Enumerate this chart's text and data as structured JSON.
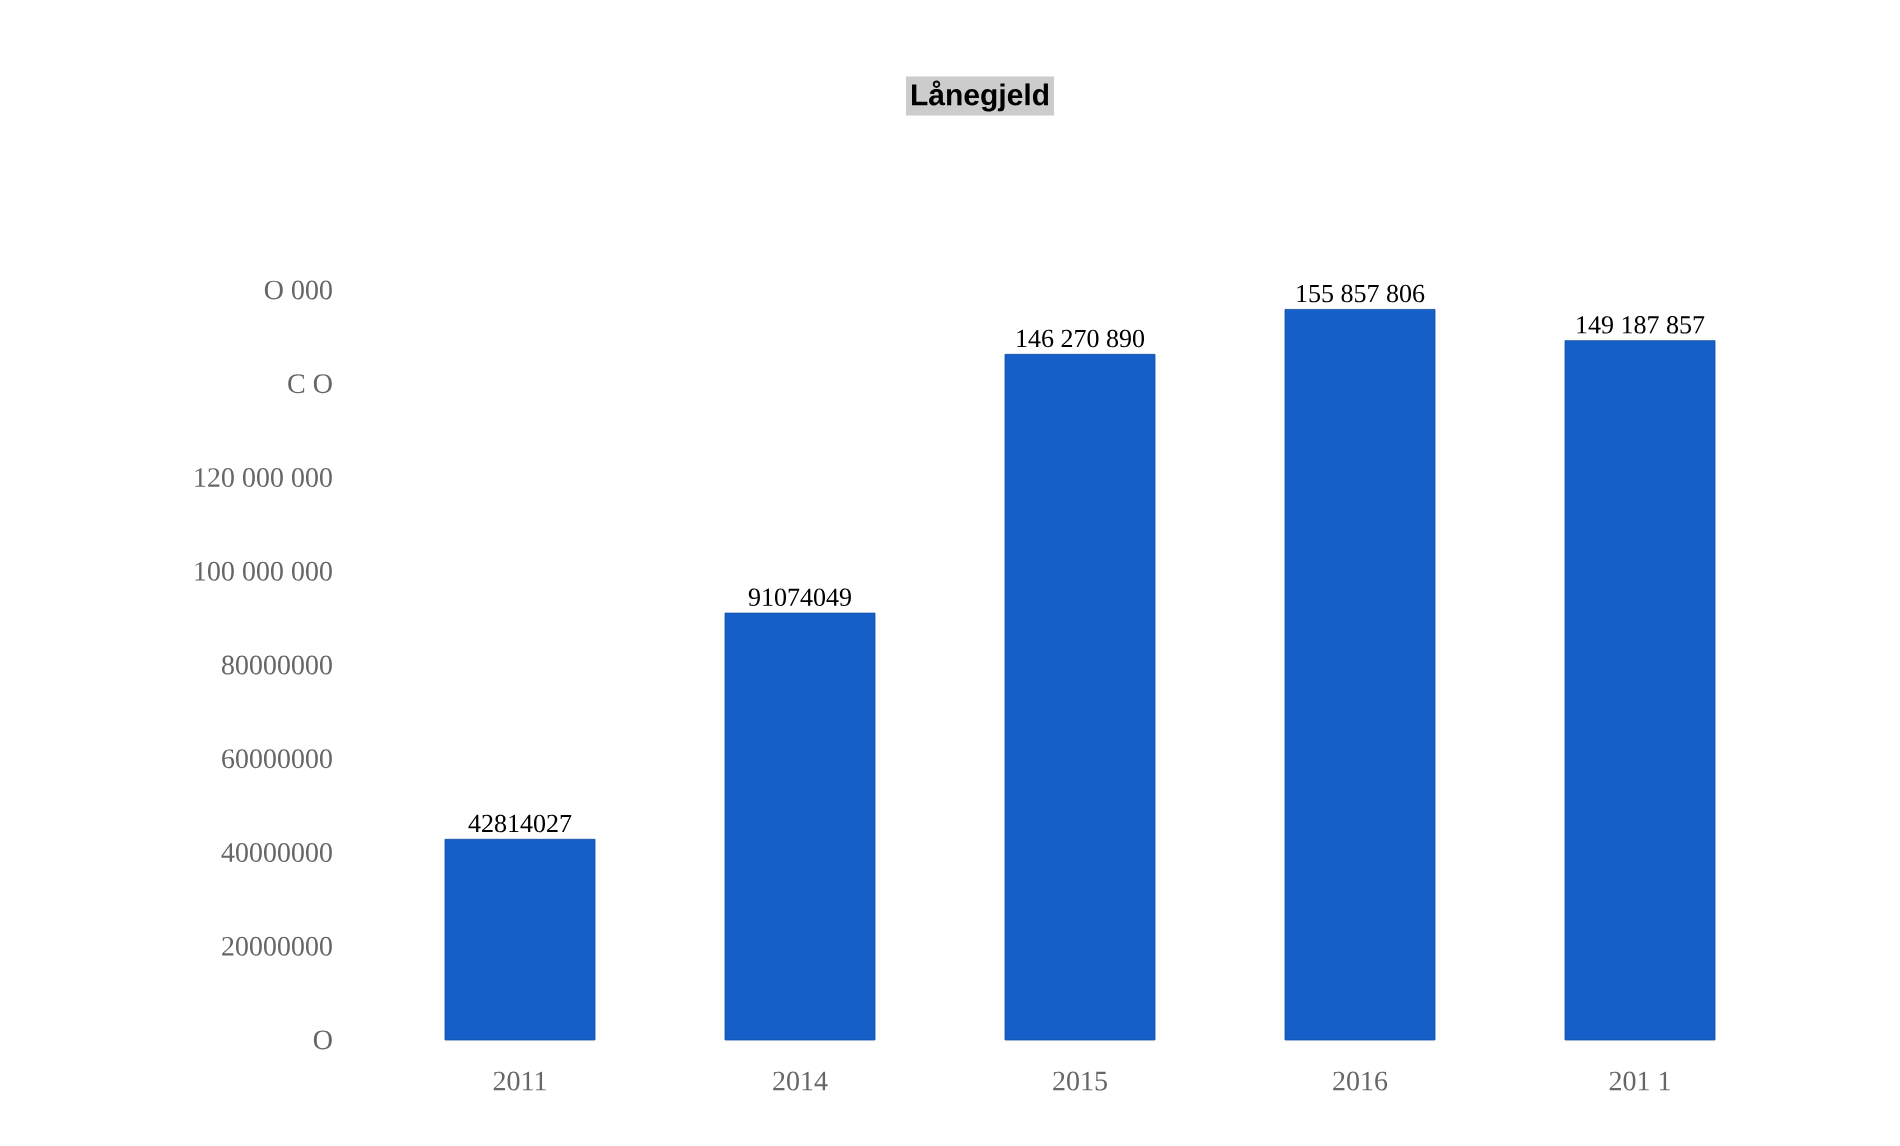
{
  "chart_data": {
    "type": "bar",
    "title": "Lånegjeld",
    "categories": [
      "2011",
      "2014",
      "2015",
      "2016",
      "201 1"
    ],
    "values": [
      42814027,
      91074049,
      146270890,
      155857806,
      149187857
    ],
    "value_labels": [
      "42814027",
      "91074049",
      "146 270 890",
      "155 857 806",
      "149 187 857"
    ],
    "color": "#1560c8",
    "ylim": [
      0,
      160000000
    ],
    "yticks": [
      {
        "value": 0,
        "label": "O"
      },
      20000000,
      40000000,
      60000000,
      80000000,
      {
        "value": 100000000,
        "label": "100 000 000"
      },
      {
        "value": 120000000,
        "label": "120 000 000"
      },
      {
        "value": 140000000,
        "label": "C O"
      },
      {
        "value": 160000000,
        "label": "O 000"
      }
    ],
    "grid": false
  }
}
